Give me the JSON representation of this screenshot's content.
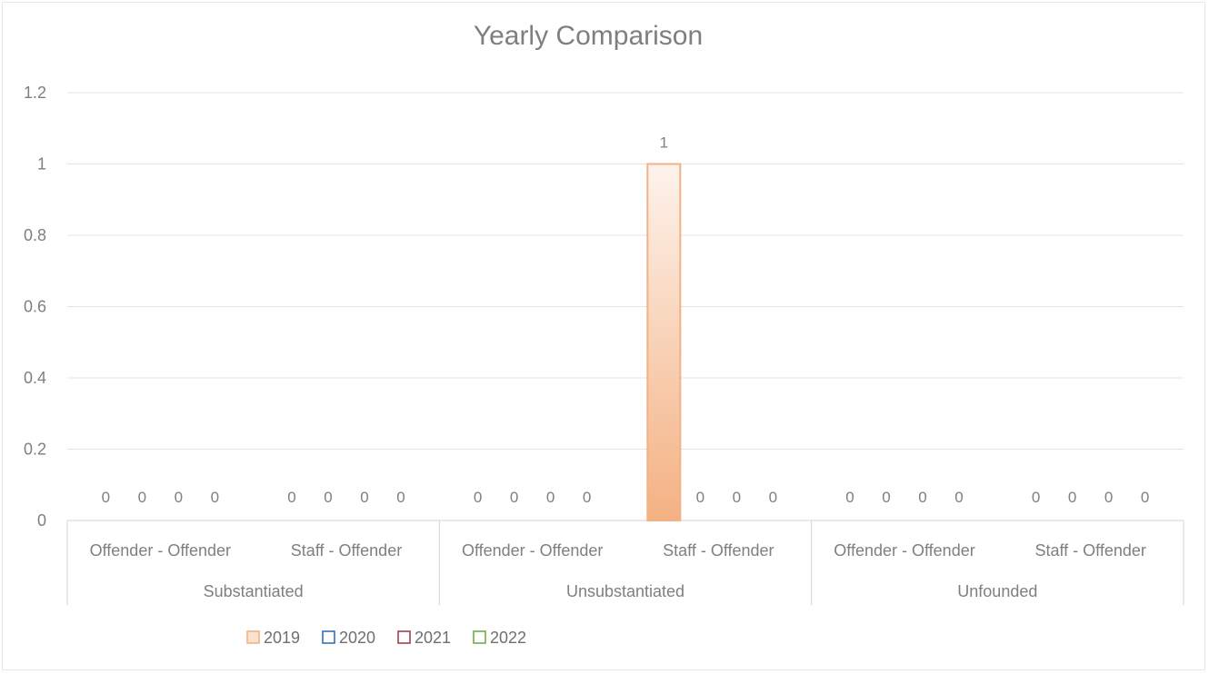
{
  "chart_data": {
    "type": "bar",
    "title": "Yearly Comparison",
    "xlabel": "",
    "ylabel": "",
    "ylim": [
      0,
      1.2
    ],
    "yticks": [
      "0",
      "0.2",
      "0.4",
      "0.6",
      "0.8",
      "1",
      "1.2"
    ],
    "grid": true,
    "legend_position": "bottom-left",
    "groups": [
      {
        "label": "Substantiated",
        "categories": [
          "Offender - Offender",
          "Staff - Offender"
        ]
      },
      {
        "label": "Unsubstantiated",
        "categories": [
          "Offender - Offender",
          "Staff - Offender"
        ]
      },
      {
        "label": "Unfounded",
        "categories": [
          "Offender - Offender",
          "Staff - Offender"
        ]
      }
    ],
    "series": [
      {
        "name": "2019",
        "color": "#f4b183",
        "values": [
          0,
          0,
          0,
          1,
          0,
          0
        ]
      },
      {
        "name": "2020",
        "color": "#2e75b6",
        "values": [
          0,
          0,
          0,
          0,
          0,
          0
        ]
      },
      {
        "name": "2021",
        "color": "#a0404f",
        "values": [
          0,
          0,
          0,
          0,
          0,
          0
        ]
      },
      {
        "name": "2022",
        "color": "#70ad47",
        "values": [
          0,
          0,
          0,
          0,
          0,
          0
        ]
      }
    ],
    "data_labels": [
      [
        "0",
        "0",
        "0",
        "0"
      ],
      [
        "0",
        "0",
        "0",
        "0"
      ],
      [
        "0",
        "0",
        "0",
        "0"
      ],
      [
        "1",
        "0",
        "0",
        "0"
      ],
      [
        "0",
        "0",
        "0",
        "0"
      ],
      [
        "0",
        "0",
        "0",
        "0"
      ]
    ]
  }
}
